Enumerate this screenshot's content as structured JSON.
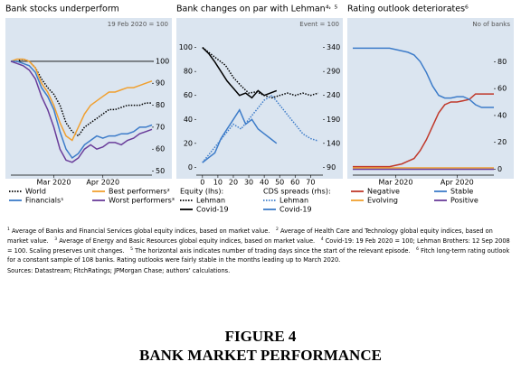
{
  "chart_data": [
    {
      "type": "line",
      "title": "Bank stocks underperform",
      "subtitle": "19 Feb 2020 = 100",
      "categories": [
        null,
        null,
        null,
        null,
        null,
        null,
        null,
        "Mar 2020",
        null,
        null,
        null,
        null,
        null,
        null,
        null,
        "Apr 2020",
        null,
        null,
        null,
        null,
        null,
        null,
        null,
        null
      ],
      "ylim": [
        49,
        109
      ],
      "yticks": [
        50,
        60,
        70,
        80,
        90,
        100
      ],
      "y_side": "right",
      "hline": 100,
      "legend_columns": 2,
      "series": [
        {
          "name": "World",
          "color": "#000000",
          "style": "dotted",
          "values": [
            100,
            100,
            101,
            100,
            97,
            92,
            88,
            85,
            80,
            72,
            68,
            66,
            70,
            72,
            74,
            76,
            78,
            78,
            79,
            80,
            80,
            80,
            81,
            81
          ]
        },
        {
          "name": "Best performers²",
          "color": "#f0a030",
          "style": "solid",
          "values": [
            100,
            101,
            101,
            100,
            97,
            90,
            86,
            80,
            72,
            66,
            64,
            70,
            76,
            80,
            82,
            84,
            86,
            86,
            87,
            88,
            88,
            89,
            90,
            91
          ]
        },
        {
          "name": "Financials¹",
          "color": "#3d7cc9",
          "style": "solid",
          "values": [
            100,
            100,
            99,
            98,
            95,
            88,
            84,
            78,
            68,
            60,
            56,
            58,
            62,
            64,
            66,
            65,
            66,
            66,
            67,
            67,
            68,
            70,
            70,
            71
          ]
        },
        {
          "name": "Worst performers³",
          "color": "#6a3d9a",
          "style": "solid",
          "values": [
            100,
            99,
            98,
            96,
            92,
            84,
            78,
            70,
            60,
            55,
            54,
            56,
            60,
            62,
            60,
            61,
            63,
            63,
            62,
            64,
            65,
            67,
            68,
            69
          ]
        }
      ]
    },
    {
      "type": "line",
      "title": "Bank changes on par with Lehman⁴˒ ⁵",
      "subtitle": "Event = 100",
      "xlim": [
        -4,
        78
      ],
      "xticks": [
        0,
        10,
        20,
        30,
        40,
        50,
        60,
        70
      ],
      "ylim": [
        -5,
        105
      ],
      "yticks": [
        0,
        20,
        40,
        60,
        80,
        100
      ],
      "y_side": "left",
      "y2lim": [
        77.5,
        352.5
      ],
      "y2ticks": [
        90,
        140,
        190,
        240,
        290,
        340
      ],
      "legend_groups": [
        "Equity (lhs):",
        "CDS spreads (rhs):"
      ],
      "series": [
        {
          "name": "Lehman",
          "group": 0,
          "color": "#000000",
          "style": "dotted",
          "x": [
            0,
            5,
            10,
            15,
            20,
            25,
            30,
            35,
            40,
            45,
            50,
            55,
            60,
            65,
            70,
            75
          ],
          "values": [
            100,
            95,
            90,
            85,
            75,
            68,
            62,
            63,
            60,
            58,
            60,
            62,
            60,
            62,
            60,
            62
          ]
        },
        {
          "name": "Covid-19",
          "group": 0,
          "color": "#000000",
          "style": "solid",
          "x": [
            0,
            4,
            8,
            12,
            16,
            20,
            24,
            28,
            32,
            36,
            40,
            44,
            48
          ],
          "values": [
            100,
            95,
            88,
            80,
            72,
            66,
            60,
            62,
            58,
            64,
            60,
            62,
            64
          ]
        },
        {
          "name": "Lehman",
          "group": 1,
          "axis": "y2",
          "color": "#3d7cc9",
          "style": "dotted",
          "x": [
            0,
            5,
            10,
            15,
            20,
            25,
            30,
            35,
            40,
            45,
            50,
            55,
            60,
            65,
            70,
            75
          ],
          "values": [
            100,
            120,
            140,
            160,
            180,
            170,
            190,
            210,
            230,
            240,
            220,
            200,
            180,
            160,
            150,
            145
          ]
        },
        {
          "name": "Covid-19",
          "group": 1,
          "axis": "y2",
          "color": "#3d7cc9",
          "style": "solid",
          "x": [
            0,
            4,
            8,
            12,
            16,
            20,
            24,
            28,
            32,
            36,
            40,
            44,
            48
          ],
          "values": [
            100,
            110,
            120,
            150,
            170,
            190,
            210,
            180,
            190,
            170,
            160,
            150,
            140
          ]
        }
      ]
    },
    {
      "type": "line",
      "title": "Rating outlook deteriorates⁶",
      "subtitle": "No of banks",
      "categories": [
        null,
        null,
        null,
        null,
        null,
        null,
        null,
        "Mar 2020",
        null,
        null,
        null,
        null,
        null,
        null,
        null,
        null,
        null,
        "Apr 2020",
        null,
        null,
        null,
        null,
        null,
        null
      ],
      "ylim": [
        -3,
        95
      ],
      "yticks": [
        0,
        20,
        40,
        60,
        80
      ],
      "y_side": "right",
      "legend_columns": 2,
      "series": [
        {
          "name": "Negative",
          "color": "#c0392b",
          "style": "solid",
          "values": [
            2,
            2,
            2,
            2,
            2,
            2,
            2,
            3,
            4,
            6,
            8,
            14,
            22,
            32,
            42,
            48,
            50,
            50,
            51,
            52,
            56,
            56,
            56,
            56
          ]
        },
        {
          "name": "Stable",
          "color": "#3d7cc9",
          "style": "solid",
          "values": [
            90,
            90,
            90,
            90,
            90,
            90,
            90,
            89,
            88,
            87,
            85,
            80,
            72,
            62,
            55,
            53,
            53,
            54,
            54,
            52,
            48,
            46,
            46,
            46
          ]
        },
        {
          "name": "Evolving",
          "color": "#f0a030",
          "style": "solid",
          "values": [
            1,
            1,
            1,
            1,
            1,
            1,
            1,
            1,
            1,
            1,
            1,
            1,
            1,
            1,
            1,
            1,
            1,
            1,
            1,
            1,
            1,
            1,
            1,
            1
          ]
        },
        {
          "name": "Positive",
          "color": "#6a3d9a",
          "style": "solid",
          "values": [
            0,
            0,
            0,
            0,
            0,
            0,
            0,
            0,
            0,
            0,
            0,
            0,
            0,
            0,
            0,
            0,
            0,
            0,
            0,
            0,
            0,
            0,
            0,
            0
          ]
        }
      ]
    }
  ],
  "notes": [
    {
      "mark": "1",
      "text": "Average of Banks and Financial Services global equity indices, based on market value."
    },
    {
      "mark": "2",
      "text": "Average of Health Care and Technology global equity indices, based on market value."
    },
    {
      "mark": "3",
      "text": "Average of Energy and Basic Resources global equity indices, based on market value."
    },
    {
      "mark": "4",
      "text": "Covid-19: 19 Feb 2020 = 100; Lehman Brothers: 12 Sep 2008 = 100. Scaling preserves unit changes."
    },
    {
      "mark": "5",
      "text": "The horizontal axis indicates number of trading days since the start of the relevant episode."
    },
    {
      "mark": "6",
      "text": "Fitch long-term rating outlook for a constant sample of 108 banks. Rating outlooks were fairly stable in the months leading up to March 2020."
    }
  ],
  "sources": "Sources: Datastream; FitchRatings; JPMorgan Chase; authors’ calculations.",
  "figure": {
    "number": "FIGURE 4",
    "title": "BANK MARKET PERFORMANCE"
  }
}
